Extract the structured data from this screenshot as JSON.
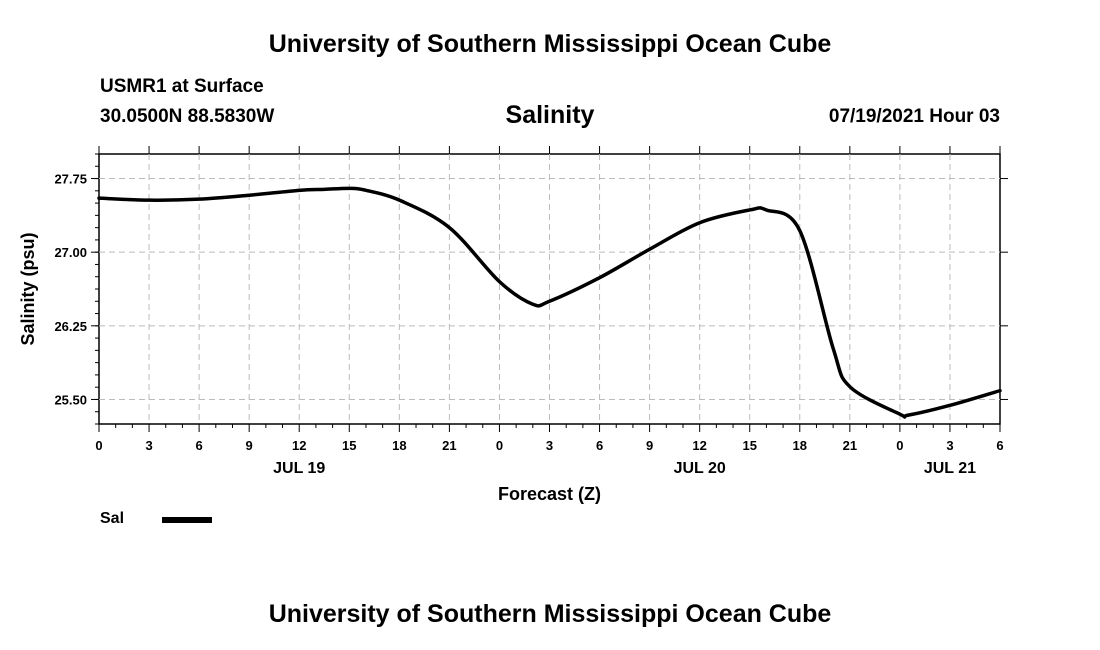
{
  "header": {
    "title": "University of Southern Mississippi Ocean Cube",
    "station": "USMR1 at Surface",
    "coords": "30.0500N  88.5830W",
    "chart_title": "Salinity",
    "datetime": "07/19/2021 Hour 03"
  },
  "footer": {
    "title": "University of Southern Mississippi Ocean Cube"
  },
  "legend": {
    "label": "Sal",
    "line_color": "#000000"
  },
  "chart_data": {
    "type": "line",
    "title": "Salinity",
    "xlabel": "Forecast (Z)",
    "ylabel": "Salinity (psu)",
    "xlim": [
      0,
      54
    ],
    "ylim": [
      25.25,
      28.0
    ],
    "x_ticks": [
      0,
      3,
      6,
      9,
      12,
      15,
      18,
      21,
      24,
      27,
      30,
      33,
      36,
      39,
      42,
      45,
      48,
      51,
      54
    ],
    "x_tick_labels": [
      "0",
      "3",
      "6",
      "9",
      "12",
      "15",
      "18",
      "21",
      "0",
      "3",
      "6",
      "9",
      "12",
      "15",
      "18",
      "21",
      "0",
      "3",
      "6"
    ],
    "y_ticks": [
      25.5,
      26.25,
      27.0,
      27.75
    ],
    "y_tick_labels": [
      "25.50",
      "26.25",
      "27.00",
      "27.75"
    ],
    "date_labels": [
      {
        "x": 12,
        "label": "JUL 19"
      },
      {
        "x": 36,
        "label": "JUL 20"
      },
      {
        "x": 51,
        "label": "JUL 21"
      }
    ],
    "grid": true,
    "series": [
      {
        "name": "Sal",
        "color": "#000000",
        "x": [
          0,
          3,
          6,
          9,
          12,
          13.5,
          15,
          16,
          18,
          21,
          24,
          26,
          27,
          30,
          33,
          36,
          39,
          40,
          42,
          44,
          45,
          48,
          48.5,
          51,
          54
        ],
        "values": [
          27.55,
          27.53,
          27.54,
          27.58,
          27.63,
          27.64,
          27.65,
          27.63,
          27.53,
          27.25,
          26.7,
          26.47,
          26.5,
          26.74,
          27.03,
          27.3,
          27.43,
          27.43,
          27.22,
          26.02,
          25.63,
          25.35,
          25.34,
          25.44,
          25.59
        ]
      }
    ]
  }
}
